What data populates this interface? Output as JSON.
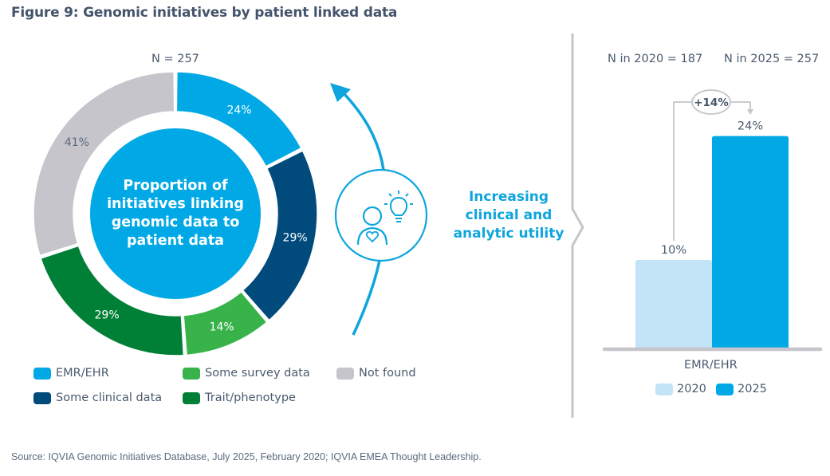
{
  "title": "Figure 9: Genomic initiatives by patient linked data",
  "source": "Source: IQVIA Genomic Initiatives Database, July 2025, February 2020; IQVIA EMEA Thought Leadership.",
  "donut": {
    "n_label": "N = 257",
    "center_text": [
      "Proportion of",
      "initiatives linking",
      "genomic data to",
      "patient data"
    ]
  },
  "utility": {
    "text": [
      "Increasing",
      "clinical and",
      "analytic utility"
    ],
    "icon": "person-heart-lightbulb-icon"
  },
  "bars": {
    "n_2020": "N in 2020 = 187",
    "n_2025": "N in 2025 = 257",
    "change_label": "+14%",
    "category": "EMR/EHR"
  },
  "colors": {
    "emr": "#00a9e6",
    "clinical": "#004a7c",
    "survey": "#37b34a",
    "trait": "#008036",
    "not_found": "#c5c5cb",
    "bar_2020": "#c3e4f7",
    "bar_2025": "#00a9e6",
    "accent": "#0ea5dd",
    "axis": "#c5c5cb"
  },
  "chart_data": [
    {
      "type": "pie",
      "title": "Proportion of initiatives linking genomic data to patient data",
      "subtitle": "N = 257",
      "categories": [
        "EMR/EHR",
        "Some clinical data",
        "Some survey data",
        "Trait/phenotype",
        "Not found"
      ],
      "values": [
        24,
        29,
        14,
        29,
        41
      ],
      "labels": [
        "24%",
        "29%",
        "14%",
        "29%",
        "41%"
      ],
      "unit": "%",
      "legend": "bottom",
      "legend_entries": [
        "EMR/EHR",
        "Some survey data",
        "Not found",
        "Some clinical data",
        "Trait/phenotype"
      ]
    },
    {
      "type": "bar",
      "title": "",
      "categories": [
        "EMR/EHR"
      ],
      "series": [
        {
          "name": "2020",
          "values": [
            10
          ],
          "label": "10%",
          "n": 187
        },
        {
          "name": "2025",
          "values": [
            24
          ],
          "label": "24%",
          "n": 257
        }
      ],
      "annotation": "+14%",
      "xlabel": "EMR/EHR",
      "ylabel": "",
      "ylim": [
        0,
        24
      ],
      "grid": false,
      "legend": "bottom"
    }
  ]
}
